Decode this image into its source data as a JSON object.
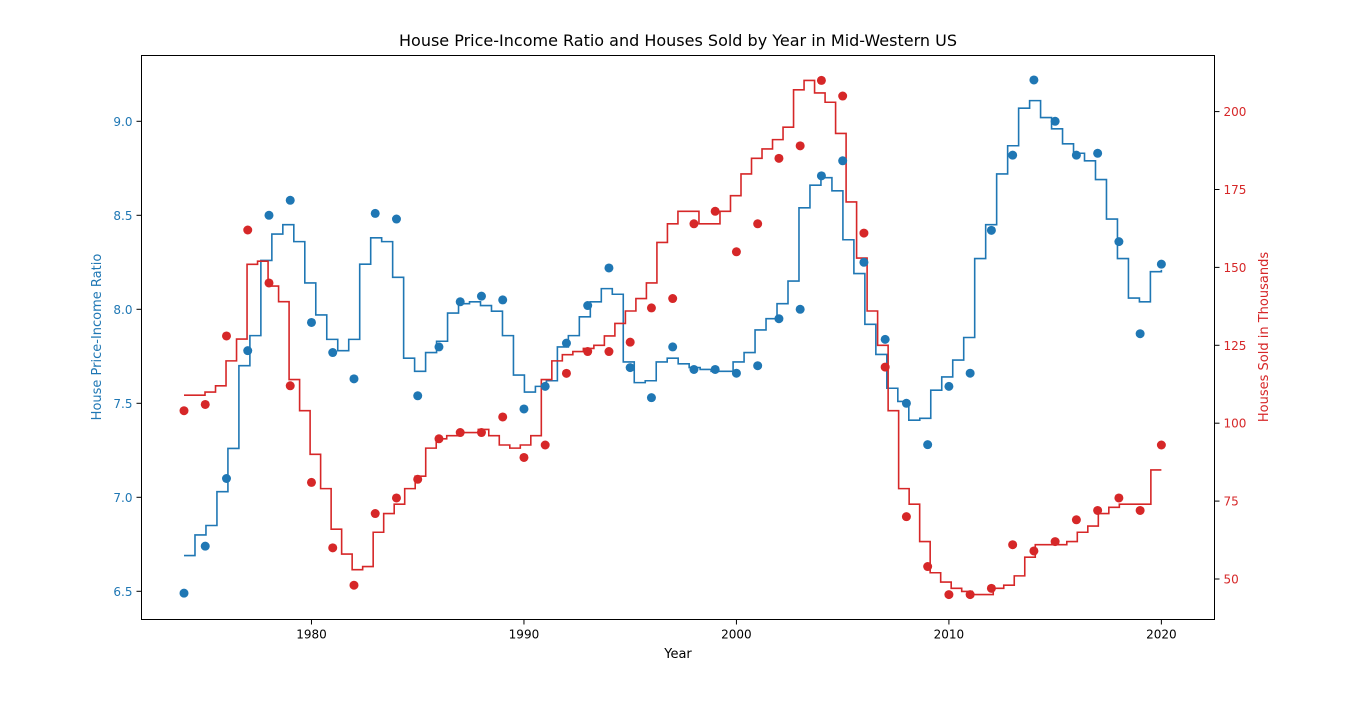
{
  "chart_data": {
    "type": "line",
    "title": "House Price-Income Ratio and Houses Sold by Year in Mid-Western US",
    "xlabel": "Year",
    "xlim": [
      1972,
      2022.5
    ],
    "x_ticks": [
      1980,
      1990,
      2000,
      2010,
      2020
    ],
    "x": [
      1974,
      1975,
      1976,
      1977,
      1978,
      1979,
      1980,
      1981,
      1982,
      1983,
      1984,
      1985,
      1986,
      1987,
      1988,
      1989,
      1990,
      1991,
      1992,
      1993,
      1994,
      1995,
      1996,
      1997,
      1998,
      1999,
      2000,
      2001,
      2002,
      2003,
      2004,
      2005,
      2006,
      2007,
      2008,
      2009,
      2010,
      2011,
      2012,
      2013,
      2014,
      2015,
      2016,
      2017,
      2018,
      2019,
      2020
    ],
    "axes": {
      "left": {
        "label": "House Price-Income Ratio",
        "ylim": [
          6.35,
          9.35
        ],
        "ticks": [
          6.5,
          7.0,
          7.5,
          8.0,
          8.5,
          9.0
        ],
        "tick_labels": [
          "6.5",
          "7.0",
          "7.5",
          "8.0",
          "8.5",
          "9.0"
        ],
        "color": "#1f77b4"
      },
      "right": {
        "label": "Houses Sold in Thousands",
        "ylim": [
          37,
          218
        ],
        "ticks": [
          50,
          75,
          100,
          125,
          150,
          175,
          200
        ],
        "tick_labels": [
          "50",
          "75",
          "100",
          "125",
          "150",
          "175",
          "200"
        ],
        "color": "#d62728"
      }
    },
    "series": [
      {
        "axis": "left",
        "color": "#1f77b4",
        "points": [
          6.49,
          6.74,
          7.1,
          7.78,
          8.5,
          8.58,
          7.93,
          7.77,
          7.63,
          8.51,
          8.48,
          7.54,
          7.8,
          8.04,
          8.07,
          8.05,
          7.47,
          7.59,
          7.82,
          8.02,
          8.22,
          7.69,
          7.53,
          7.8,
          7.68,
          7.68,
          7.66,
          7.7,
          7.95,
          8.0,
          8.71,
          8.79,
          8.25,
          7.84,
          7.5,
          7.28,
          7.59,
          7.66,
          8.42,
          8.82,
          9.22,
          9.0,
          8.82,
          8.83,
          8.36,
          7.87,
          8.24
        ],
        "step": [
          6.69,
          6.8,
          6.85,
          7.03,
          7.26,
          7.7,
          7.86,
          8.26,
          8.4,
          8.45,
          8.36,
          8.14,
          7.97,
          7.84,
          7.78,
          7.84,
          8.24,
          8.38,
          8.36,
          8.17,
          7.74,
          7.67,
          7.77,
          7.83,
          7.98,
          8.03,
          8.04,
          8.02,
          7.99,
          7.86,
          7.65,
          7.56,
          7.59,
          7.62,
          7.8,
          7.86,
          7.96,
          8.04,
          8.11,
          8.08,
          7.72,
          7.61,
          7.62,
          7.72,
          7.74,
          7.71,
          7.69,
          7.68,
          7.67,
          7.67,
          7.72,
          7.77,
          7.89,
          7.95,
          8.03,
          8.15,
          8.54,
          8.66,
          8.7,
          8.63,
          8.37,
          8.19,
          7.92,
          7.76,
          7.58,
          7.51,
          7.41,
          7.42,
          7.57,
          7.64,
          7.73,
          7.85,
          8.27,
          8.45,
          8.72,
          8.87,
          9.07,
          9.11,
          9.02,
          8.96,
          8.88,
          8.83,
          8.79,
          8.69,
          8.48,
          8.27,
          8.06,
          8.04,
          8.2,
          8.21
        ]
      },
      {
        "axis": "right",
        "color": "#d62728",
        "points": [
          104,
          106,
          128,
          162,
          145,
          112,
          81,
          60,
          48,
          71,
          76,
          82,
          95,
          97,
          97,
          102,
          89,
          93,
          116,
          123,
          123,
          126,
          137,
          140,
          164,
          168,
          155,
          164,
          185,
          189,
          210,
          205,
          161,
          118,
          70,
          54,
          45,
          45,
          47,
          61,
          59,
          62,
          69,
          72,
          76,
          72,
          93
        ],
        "step": [
          109,
          109,
          110,
          112,
          120,
          127,
          151,
          152,
          144,
          139,
          114,
          104,
          90,
          79,
          66,
          58,
          53,
          54,
          65,
          71,
          74,
          79,
          83,
          92,
          95,
          96,
          97,
          97,
          98,
          96,
          93,
          92,
          93,
          96,
          114,
          120,
          122,
          123,
          124,
          125,
          128,
          132,
          136,
          140,
          145,
          158,
          164,
          168,
          168,
          164,
          164,
          168,
          173,
          180,
          185,
          188,
          191,
          195,
          207,
          210,
          206,
          203,
          193,
          171,
          153,
          136,
          125,
          104,
          79,
          74,
          62,
          52,
          49,
          47,
          46,
          45,
          45,
          47,
          48,
          51,
          57,
          61,
          61,
          61,
          62,
          65,
          67,
          71,
          73,
          74,
          74,
          74,
          85,
          85
        ]
      }
    ]
  }
}
